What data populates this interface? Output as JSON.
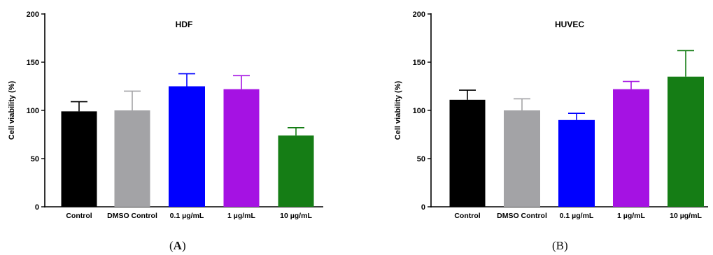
{
  "panels": [
    {
      "open": "(",
      "letter": "A",
      "close": ")"
    },
    {
      "label": "(B)"
    }
  ],
  "chart_data": [
    {
      "type": "bar",
      "title": "HDF",
      "ylabel": "Cell viability (%)",
      "xlabel": "",
      "ylim": [
        0,
        200
      ],
      "yticks": [
        0,
        50,
        100,
        150,
        200
      ],
      "categories": [
        "Control",
        "DMSO Control",
        "0.1 µg/mL",
        "1 µg/mL",
        "10 µg/mL"
      ],
      "values": [
        99,
        100,
        125,
        122,
        74
      ],
      "error_upper": [
        10,
        20,
        13,
        14,
        8
      ],
      "colors": [
        "#000000",
        "#a3a3a6",
        "#0000ff",
        "#a512e3",
        "#157d15"
      ]
    },
    {
      "type": "bar",
      "title": "HUVEC",
      "ylabel": "Cell viability (%)",
      "xlabel": "",
      "ylim": [
        0,
        200
      ],
      "yticks": [
        0,
        50,
        100,
        150,
        200
      ],
      "categories": [
        "Control",
        "DMSO Control",
        "0.1 µg/mL",
        "1 µg/mL",
        "10 µg/mL"
      ],
      "values": [
        111,
        100,
        90,
        122,
        135
      ],
      "error_upper": [
        10,
        12,
        7,
        8,
        27
      ],
      "colors": [
        "#000000",
        "#a3a3a6",
        "#0000ff",
        "#a512e3",
        "#157d15"
      ]
    }
  ]
}
